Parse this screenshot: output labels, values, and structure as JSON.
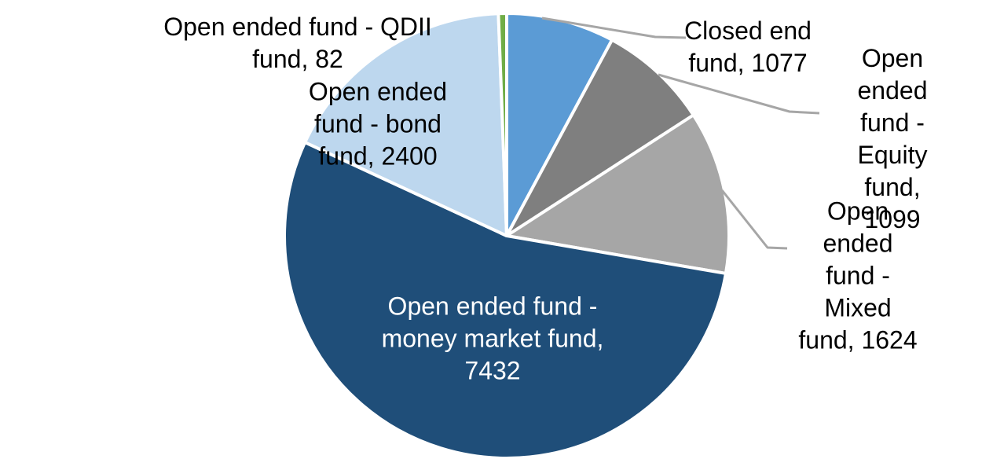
{
  "page": {
    "background": "#FFFFFF"
  },
  "chart_data": {
    "type": "pie",
    "title": "",
    "legend": "none",
    "start_angle_deg": 0,
    "direction": "clockwise",
    "slice_border_color": "#FFFFFF",
    "leader_line_color": "#A6A6A6",
    "label_format": "category, value",
    "segments": [
      {
        "name": "Closed end fund",
        "value": 1077,
        "color": "#5B9BD5",
        "label_display": "Closed end\nfund, 1077",
        "label_color": "#000000",
        "label_placement": "outside",
        "has_leader_line": true
      },
      {
        "name": "Open ended fund - Equity fund",
        "value": 1099,
        "color": "#7F7F7F",
        "label_display": "Open ended\nfund - Equity\nfund, 1099",
        "label_color": "#000000",
        "label_placement": "outside",
        "has_leader_line": true
      },
      {
        "name": "Open ended fund - Mixed fund",
        "value": 1624,
        "color": "#A6A6A6",
        "label_display": "Open ended\nfund - Mixed\nfund, 1624",
        "label_color": "#000000",
        "label_placement": "outside",
        "has_leader_line": true
      },
      {
        "name": "Open ended fund - money market fund",
        "value": 7432,
        "color": "#1F4E79",
        "label_display": "Open ended fund -\nmoney market fund,\n7432",
        "label_color": "#FFFFFF",
        "label_placement": "inside",
        "has_leader_line": false
      },
      {
        "name": "Open ended fund - bond fund",
        "value": 2400,
        "color": "#BDD7EE",
        "label_display": "Open ended\nfund - bond\nfund, 2400",
        "label_color": "#000000",
        "label_placement": "inside",
        "has_leader_line": false
      },
      {
        "name": "Open ended fund - QDII fund",
        "value": 82,
        "color": "#70AD47",
        "label_display": "Open ended fund - QDII\nfund, 82",
        "label_color": "#000000",
        "label_placement": "outside",
        "has_leader_line": false
      }
    ]
  }
}
